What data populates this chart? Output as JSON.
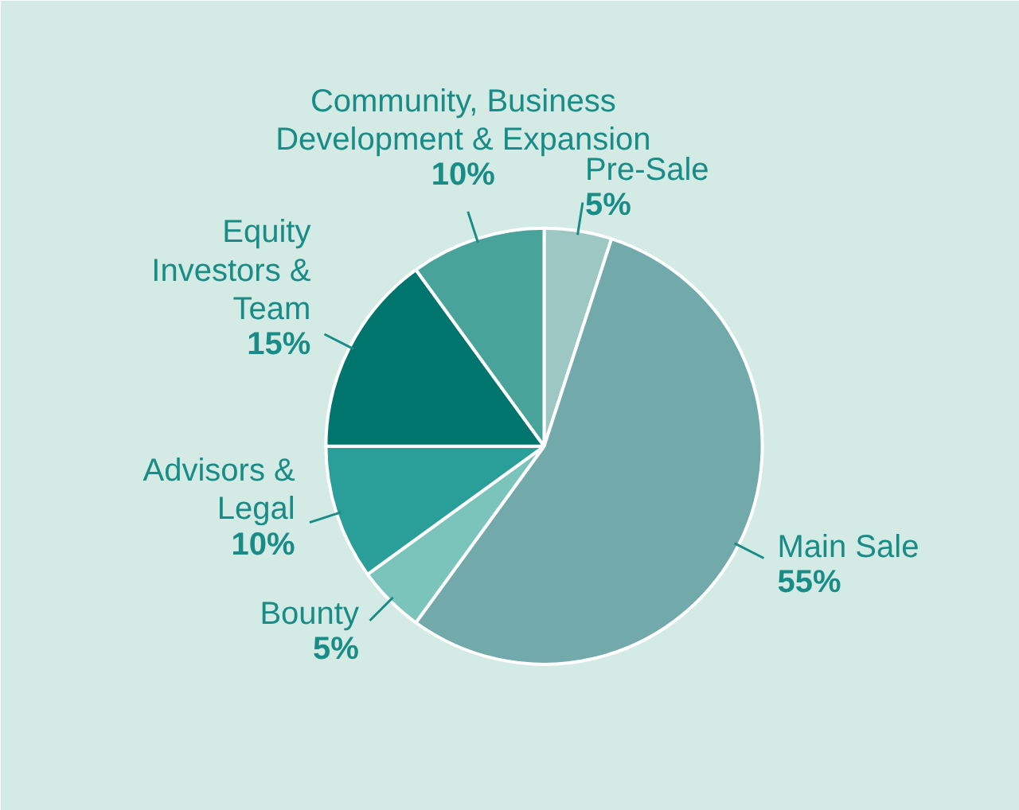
{
  "chart_data": {
    "type": "pie",
    "categories": [
      "Pre-Sale",
      "Main Sale",
      "Bounty",
      "Advisors & Legal",
      "Equity Investors & Team",
      "Community, Business Development & Expansion"
    ],
    "values": [
      5,
      55,
      5,
      10,
      15,
      10
    ],
    "colors": [
      "#9cc7c2",
      "#72a9aa",
      "#7bc4bb",
      "#2a9e98",
      "#00756e",
      "#48a39a"
    ],
    "value_labels": [
      "5%",
      "55%",
      "5%",
      "10%",
      "15%",
      "10%"
    ]
  }
}
